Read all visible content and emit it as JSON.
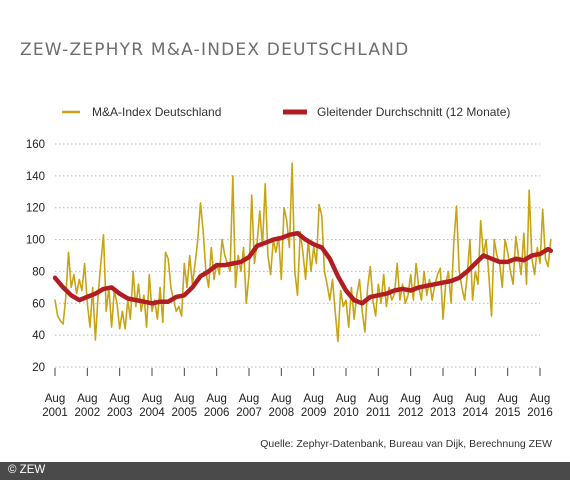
{
  "title": "ZEW-ZEPHYR M&A-INDEX DEUTSCHLAND",
  "source": "Quelle: Zephyr-Datenbank, Bureau van Dijk, Berechnung ZEW",
  "footer": {
    "copyright": "© ZEW"
  },
  "colors": {
    "index": "#c8a415",
    "average": "#b01e23",
    "grid": "#b8b8b8",
    "footer": "#4a4a4a"
  },
  "chart_data": {
    "type": "line",
    "ylim": [
      20,
      160
    ],
    "y_ticks": [
      20,
      40,
      60,
      80,
      100,
      120,
      140,
      160
    ],
    "x_ticks": [
      {
        "month": "Aug",
        "year": "2001"
      },
      {
        "month": "Aug",
        "year": "2002"
      },
      {
        "month": "Aug",
        "year": "2003"
      },
      {
        "month": "Aug",
        "year": "2004"
      },
      {
        "month": "Aug",
        "year": "2005"
      },
      {
        "month": "Aug",
        "year": "2006"
      },
      {
        "month": "Aug",
        "year": "2007"
      },
      {
        "month": "Aug",
        "year": "2008"
      },
      {
        "month": "Aug",
        "year": "2009"
      },
      {
        "month": "Aug",
        "year": "2010"
      },
      {
        "month": "Aug",
        "year": "2011"
      },
      {
        "month": "Aug",
        "year": "2012"
      },
      {
        "month": "Aug",
        "year": "2013"
      },
      {
        "month": "Aug",
        "year": "2014"
      },
      {
        "month": "Aug",
        "year": "2015"
      },
      {
        "month": "Aug",
        "year": "2016"
      }
    ],
    "grid": true,
    "legend_position": "top",
    "series": [
      {
        "name": "M&A-Index Deutschland",
        "points": [
          [
            "2001-08",
            62
          ],
          [
            "2001-09",
            52
          ],
          [
            "2001-10",
            49
          ],
          [
            "2001-11",
            47
          ],
          [
            "2001-12",
            64
          ],
          [
            "2002-01",
            92
          ],
          [
            "2002-02",
            70
          ],
          [
            "2002-03",
            78
          ],
          [
            "2002-04",
            66
          ],
          [
            "2002-05",
            75
          ],
          [
            "2002-06",
            68
          ],
          [
            "2002-07",
            85
          ],
          [
            "2002-08",
            60
          ],
          [
            "2002-09",
            45
          ],
          [
            "2002-10",
            70
          ],
          [
            "2002-11",
            37
          ],
          [
            "2002-12",
            65
          ],
          [
            "2003-01",
            85
          ],
          [
            "2003-02",
            103
          ],
          [
            "2003-03",
            55
          ],
          [
            "2003-04",
            70
          ],
          [
            "2003-05",
            45
          ],
          [
            "2003-06",
            68
          ],
          [
            "2003-07",
            60
          ],
          [
            "2003-08",
            44
          ],
          [
            "2003-09",
            55
          ],
          [
            "2003-10",
            44
          ],
          [
            "2003-11",
            62
          ],
          [
            "2003-12",
            50
          ],
          [
            "2004-01",
            80
          ],
          [
            "2004-02",
            58
          ],
          [
            "2004-03",
            72
          ],
          [
            "2004-04",
            55
          ],
          [
            "2004-05",
            65
          ],
          [
            "2004-06",
            45
          ],
          [
            "2004-07",
            78
          ],
          [
            "2004-08",
            55
          ],
          [
            "2004-09",
            62
          ],
          [
            "2004-10",
            50
          ],
          [
            "2004-11",
            70
          ],
          [
            "2004-12",
            48
          ],
          [
            "2005-01",
            92
          ],
          [
            "2005-02",
            88
          ],
          [
            "2005-03",
            70
          ],
          [
            "2005-04",
            62
          ],
          [
            "2005-05",
            55
          ],
          [
            "2005-06",
            58
          ],
          [
            "2005-07",
            52
          ],
          [
            "2005-08",
            85
          ],
          [
            "2005-09",
            70
          ],
          [
            "2005-10",
            90
          ],
          [
            "2005-11",
            72
          ],
          [
            "2005-12",
            85
          ],
          [
            "2006-01",
            100
          ],
          [
            "2006-02",
            123
          ],
          [
            "2006-03",
            105
          ],
          [
            "2006-04",
            80
          ],
          [
            "2006-05",
            70
          ],
          [
            "2006-06",
            95
          ],
          [
            "2006-07",
            75
          ],
          [
            "2006-08",
            85
          ],
          [
            "2006-09",
            78
          ],
          [
            "2006-10",
            100
          ],
          [
            "2006-11",
            90
          ],
          [
            "2006-12",
            85
          ],
          [
            "2007-01",
            80
          ],
          [
            "2007-02",
            140
          ],
          [
            "2007-03",
            70
          ],
          [
            "2007-04",
            90
          ],
          [
            "2007-05",
            80
          ],
          [
            "2007-06",
            95
          ],
          [
            "2007-07",
            60
          ],
          [
            "2007-08",
            78
          ],
          [
            "2007-09",
            128
          ],
          [
            "2007-10",
            85
          ],
          [
            "2007-11",
            98
          ],
          [
            "2007-12",
            118
          ],
          [
            "2008-01",
            96
          ],
          [
            "2008-02",
            135
          ],
          [
            "2008-03",
            90
          ],
          [
            "2008-04",
            78
          ],
          [
            "2008-05",
            100
          ],
          [
            "2008-06",
            92
          ],
          [
            "2008-07",
            102
          ],
          [
            "2008-08",
            75
          ],
          [
            "2008-09",
            120
          ],
          [
            "2008-10",
            112
          ],
          [
            "2008-11",
            95
          ],
          [
            "2008-12",
            148
          ],
          [
            "2009-01",
            80
          ],
          [
            "2009-02",
            65
          ],
          [
            "2009-03",
            105
          ],
          [
            "2009-04",
            92
          ],
          [
            "2009-05",
            75
          ],
          [
            "2009-06",
            100
          ],
          [
            "2009-07",
            80
          ],
          [
            "2009-08",
            95
          ],
          [
            "2009-09",
            85
          ],
          [
            "2009-10",
            122
          ],
          [
            "2009-11",
            115
          ],
          [
            "2009-12",
            80
          ],
          [
            "2010-01",
            72
          ],
          [
            "2010-02",
            62
          ],
          [
            "2010-03",
            75
          ],
          [
            "2010-04",
            55
          ],
          [
            "2010-05",
            36
          ],
          [
            "2010-06",
            68
          ],
          [
            "2010-07",
            58
          ],
          [
            "2010-08",
            62
          ],
          [
            "2010-09",
            45
          ],
          [
            "2010-10",
            70
          ],
          [
            "2010-11",
            50
          ],
          [
            "2010-12",
            65
          ],
          [
            "2011-01",
            75
          ],
          [
            "2011-02",
            55
          ],
          [
            "2011-03",
            42
          ],
          [
            "2011-04",
            70
          ],
          [
            "2011-05",
            83
          ],
          [
            "2011-06",
            62
          ],
          [
            "2011-07",
            52
          ],
          [
            "2011-08",
            72
          ],
          [
            "2011-09",
            60
          ],
          [
            "2011-10",
            78
          ],
          [
            "2011-11",
            58
          ],
          [
            "2011-12",
            70
          ],
          [
            "2012-01",
            62
          ],
          [
            "2012-02",
            66
          ],
          [
            "2012-03",
            85
          ],
          [
            "2012-04",
            62
          ],
          [
            "2012-05",
            72
          ],
          [
            "2012-06",
            60
          ],
          [
            "2012-07",
            65
          ],
          [
            "2012-08",
            78
          ],
          [
            "2012-09",
            62
          ],
          [
            "2012-10",
            85
          ],
          [
            "2012-11",
            70
          ],
          [
            "2012-12",
            62
          ],
          [
            "2013-01",
            80
          ],
          [
            "2013-02",
            65
          ],
          [
            "2013-03",
            75
          ],
          [
            "2013-04",
            62
          ],
          [
            "2013-05",
            72
          ],
          [
            "2013-06",
            78
          ],
          [
            "2013-07",
            82
          ],
          [
            "2013-08",
            50
          ],
          [
            "2013-09",
            72
          ],
          [
            "2013-10",
            80
          ],
          [
            "2013-11",
            60
          ],
          [
            "2013-12",
            98
          ],
          [
            "2014-01",
            121
          ],
          [
            "2014-02",
            80
          ],
          [
            "2014-03",
            70
          ],
          [
            "2014-04",
            62
          ],
          [
            "2014-05",
            78
          ],
          [
            "2014-06",
            100
          ],
          [
            "2014-07",
            62
          ],
          [
            "2014-08",
            80
          ],
          [
            "2014-09",
            72
          ],
          [
            "2014-10",
            112
          ],
          [
            "2014-11",
            90
          ],
          [
            "2014-12",
            100
          ],
          [
            "2015-01",
            78
          ],
          [
            "2015-02",
            52
          ],
          [
            "2015-03",
            100
          ],
          [
            "2015-04",
            90
          ],
          [
            "2015-05",
            85
          ],
          [
            "2015-06",
            70
          ],
          [
            "2015-07",
            100
          ],
          [
            "2015-08",
            92
          ],
          [
            "2015-09",
            80
          ],
          [
            "2015-10",
            72
          ],
          [
            "2015-11",
            102
          ],
          [
            "2015-12",
            90
          ],
          [
            "2016-01",
            78
          ],
          [
            "2016-02",
            104
          ],
          [
            "2016-03",
            72
          ],
          [
            "2016-04",
            131
          ],
          [
            "2016-05",
            88
          ],
          [
            "2016-06",
            78
          ],
          [
            "2016-07",
            95
          ],
          [
            "2016-08",
            85
          ],
          [
            "2016-09",
            119
          ],
          [
            "2016-10",
            88
          ],
          [
            "2016-11",
            83
          ],
          [
            "2016-12",
            100
          ]
        ]
      },
      {
        "name": "Gleitender Durchschnitt (12 Monate)",
        "points": [
          [
            "2001-08",
            76
          ],
          [
            "2001-11",
            70
          ],
          [
            "2002-02",
            65
          ],
          [
            "2002-05",
            62
          ],
          [
            "2002-08",
            64
          ],
          [
            "2002-11",
            66
          ],
          [
            "2003-02",
            69
          ],
          [
            "2003-05",
            70
          ],
          [
            "2003-08",
            66
          ],
          [
            "2003-11",
            63
          ],
          [
            "2004-02",
            62
          ],
          [
            "2004-05",
            61
          ],
          [
            "2004-08",
            60
          ],
          [
            "2004-11",
            61
          ],
          [
            "2005-02",
            61
          ],
          [
            "2005-05",
            64
          ],
          [
            "2005-08",
            65
          ],
          [
            "2005-11",
            70
          ],
          [
            "2006-02",
            77
          ],
          [
            "2006-05",
            80
          ],
          [
            "2006-08",
            84
          ],
          [
            "2006-11",
            84
          ],
          [
            "2007-02",
            85
          ],
          [
            "2007-05",
            86
          ],
          [
            "2007-08",
            89
          ],
          [
            "2007-11",
            96
          ],
          [
            "2008-02",
            98
          ],
          [
            "2008-05",
            100
          ],
          [
            "2008-08",
            101
          ],
          [
            "2008-11",
            103
          ],
          [
            "2009-02",
            104
          ],
          [
            "2009-05",
            100
          ],
          [
            "2009-08",
            97
          ],
          [
            "2009-11",
            95
          ],
          [
            "2010-02",
            88
          ],
          [
            "2010-05",
            77
          ],
          [
            "2010-08",
            68
          ],
          [
            "2010-11",
            62
          ],
          [
            "2011-02",
            60
          ],
          [
            "2011-05",
            64
          ],
          [
            "2011-08",
            65
          ],
          [
            "2011-11",
            66
          ],
          [
            "2012-02",
            68
          ],
          [
            "2012-05",
            69
          ],
          [
            "2012-08",
            68
          ],
          [
            "2012-11",
            70
          ],
          [
            "2013-02",
            71
          ],
          [
            "2013-05",
            72
          ],
          [
            "2013-08",
            73
          ],
          [
            "2013-11",
            74
          ],
          [
            "2014-02",
            76
          ],
          [
            "2014-05",
            80
          ],
          [
            "2014-08",
            85
          ],
          [
            "2014-11",
            90
          ],
          [
            "2015-02",
            88
          ],
          [
            "2015-05",
            86
          ],
          [
            "2015-08",
            86
          ],
          [
            "2015-11",
            88
          ],
          [
            "2016-02",
            87
          ],
          [
            "2016-05",
            90
          ],
          [
            "2016-08",
            91
          ],
          [
            "2016-11",
            94
          ],
          [
            "2016-12",
            93
          ]
        ]
      }
    ]
  }
}
